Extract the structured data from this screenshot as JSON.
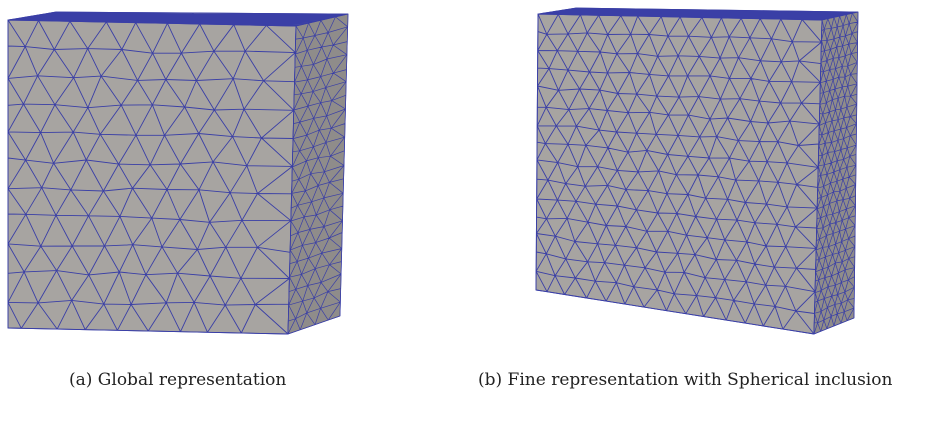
{
  "figures": [
    {
      "caption": "(a) Global representation",
      "mesh": "coarse",
      "cols": 9,
      "rows": 11,
      "side_cols": 4
    },
    {
      "caption": "(b) Fine representation with Spherical inclusion",
      "mesh": "fine",
      "cols": 14,
      "rows": 15,
      "side_cols": 6
    }
  ],
  "colors": {
    "face_front": "#a7a4a1",
    "face_side": "#8f8c8a",
    "face_top": "#b5b2af",
    "mesh_edge": "#3a3fa6"
  }
}
